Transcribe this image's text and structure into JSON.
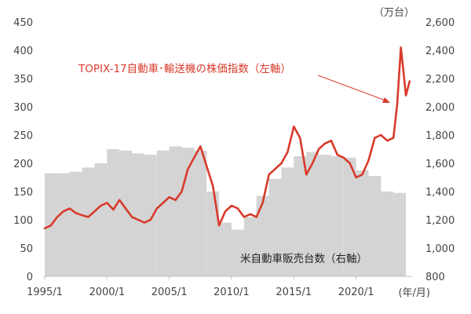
{
  "chart_data": {
    "type": "line",
    "title": "",
    "right_axis_unit": "（万台）",
    "x_axis_unit": "(年/月)",
    "x_ticks": [
      "1995/1",
      "2000/1",
      "2005/1",
      "2010/1",
      "2015/1",
      "2020/1"
    ],
    "left_axis": {
      "ticks": [
        0,
        50,
        100,
        150,
        200,
        250,
        300,
        350,
        400,
        450
      ],
      "ylim": [
        0,
        450
      ]
    },
    "right_axis": {
      "ticks": [
        "800",
        "1,000",
        "1,200",
        "1,400",
        "1,600",
        "1,800",
        "2,000",
        "2,200",
        "2,400",
        "2,600"
      ],
      "ylim": [
        800,
        2600
      ]
    },
    "line_annotation": "TOPIX-17自動車･輸送機の株価指数（左軸）",
    "bar_annotation": "米自動車販売台数（右軸）",
    "line_color": "#d93a2b",
    "bar_color": "#d4d4d4",
    "series": [
      {
        "name": "米自動車販売台数（右軸）",
        "kind": "bar",
        "axis": "right",
        "x": [
          1995,
          1996,
          1997,
          1998,
          1999,
          2000,
          2001,
          2002,
          2003,
          2004,
          2005,
          2006,
          2007,
          2008,
          2009,
          2010,
          2011,
          2012,
          2013,
          2014,
          2015,
          2016,
          2017,
          2018,
          2019,
          2020,
          2021,
          2022,
          2023
        ],
        "values": [
          1530,
          1530,
          1540,
          1570,
          1600,
          1700,
          1690,
          1670,
          1660,
          1690,
          1720,
          1710,
          1690,
          1400,
          1180,
          1130,
          1220,
          1370,
          1490,
          1570,
          1650,
          1680,
          1660,
          1650,
          1640,
          1550,
          1510,
          1400,
          1390
        ]
      },
      {
        "name": "TOPIX-17自動車･輸送機の株価指数（左軸）",
        "kind": "line",
        "axis": "left",
        "x": [
          1995.0,
          1995.5,
          1996.0,
          1996.5,
          1997.0,
          1997.5,
          1998.0,
          1998.5,
          1999.0,
          1999.5,
          2000.0,
          2000.5,
          2001.0,
          2001.5,
          2002.0,
          2002.5,
          2003.0,
          2003.5,
          2004.0,
          2004.5,
          2005.0,
          2005.5,
          2006.0,
          2006.5,
          2007.0,
          2007.5,
          2008.0,
          2008.5,
          2009.0,
          2009.5,
          2010.0,
          2010.5,
          2011.0,
          2011.5,
          2012.0,
          2012.5,
          2013.0,
          2013.5,
          2014.0,
          2014.5,
          2015.0,
          2015.5,
          2016.0,
          2016.5,
          2017.0,
          2017.5,
          2018.0,
          2018.5,
          2019.0,
          2019.5,
          2020.0,
          2020.5,
          2021.0,
          2021.5,
          2022.0,
          2022.5,
          2023.0,
          2023.3,
          2023.6,
          2024.0,
          2024.3
        ],
        "values": [
          85,
          90,
          105,
          115,
          120,
          112,
          108,
          105,
          115,
          125,
          130,
          118,
          135,
          120,
          105,
          100,
          95,
          100,
          120,
          130,
          140,
          135,
          150,
          190,
          210,
          230,
          195,
          160,
          90,
          115,
          125,
          120,
          105,
          110,
          105,
          130,
          180,
          190,
          200,
          220,
          265,
          245,
          180,
          200,
          225,
          235,
          240,
          215,
          210,
          200,
          175,
          180,
          205,
          245,
          250,
          240,
          245,
          305,
          405,
          320,
          345
        ]
      }
    ]
  }
}
